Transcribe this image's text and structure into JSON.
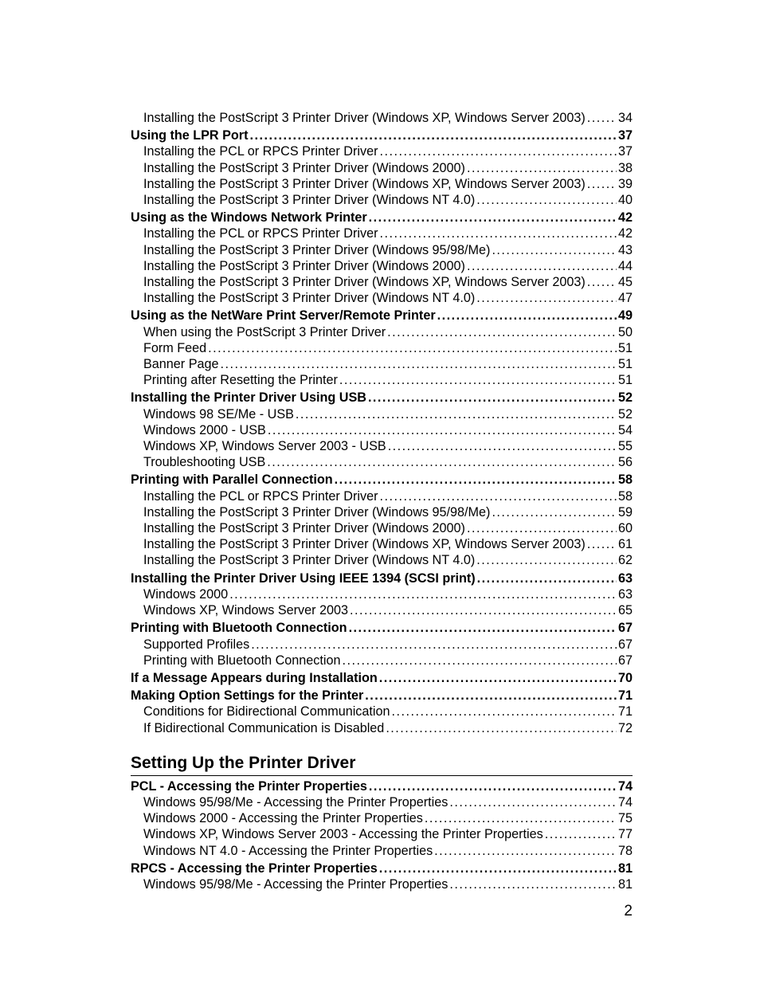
{
  "page_number": "2",
  "colors": {
    "text": "#000000",
    "background": "#ffffff",
    "rule": "#000000"
  },
  "typography": {
    "body_fontsize_pt": 12,
    "heading_fontsize_pt": 16,
    "font_family": "Arial"
  },
  "sections": [
    {
      "groups": [
        {
          "heading": null,
          "entries": [
            {
              "level": 2,
              "label": "Installing the PostScript 3 Printer Driver (Windows XP, Windows Server 2003)",
              "page": "34"
            }
          ]
        },
        {
          "heading": {
            "label": "Using the LPR Port",
            "page": "37"
          },
          "entries": [
            {
              "level": 2,
              "label": "Installing the PCL or RPCS Printer Driver",
              "page": "37"
            },
            {
              "level": 2,
              "label": "Installing the PostScript 3 Printer Driver (Windows 2000)",
              "page": "38"
            },
            {
              "level": 2,
              "label": "Installing the PostScript 3 Printer Driver (Windows XP, Windows Server 2003)",
              "page": "39"
            },
            {
              "level": 2,
              "label": "Installing the PostScript 3 Printer Driver (Windows NT 4.0)",
              "page": "40"
            }
          ]
        },
        {
          "heading": {
            "label": "Using as the Windows Network Printer",
            "page": "42"
          },
          "entries": [
            {
              "level": 2,
              "label": "Installing the PCL or RPCS Printer Driver",
              "page": "42"
            },
            {
              "level": 2,
              "label": "Installing the PostScript 3 Printer Driver (Windows 95/98/Me)",
              "page": "43"
            },
            {
              "level": 2,
              "label": "Installing the PostScript 3 Printer Driver (Windows 2000)",
              "page": "44"
            },
            {
              "level": 2,
              "label": "Installing the PostScript 3 Printer Driver (Windows XP, Windows Server 2003)",
              "page": "45"
            },
            {
              "level": 2,
              "label": "Installing the PostScript 3 Printer Driver (Windows NT 4.0)",
              "page": "47"
            }
          ]
        },
        {
          "heading": {
            "label": "Using as the NetWare Print Server/Remote Printer",
            "page": "49"
          },
          "entries": [
            {
              "level": 2,
              "label": "When using the PostScript 3 Printer Driver",
              "page": "50"
            },
            {
              "level": 2,
              "label": "Form Feed",
              "page": "51"
            },
            {
              "level": 2,
              "label": "Banner Page",
              "page": "51"
            },
            {
              "level": 2,
              "label": "Printing after Resetting the Printer",
              "page": "51"
            }
          ]
        },
        {
          "heading": {
            "label": "Installing the Printer Driver Using USB",
            "page": "52"
          },
          "entries": [
            {
              "level": 2,
              "label": "Windows 98 SE/Me - USB",
              "page": "52"
            },
            {
              "level": 2,
              "label": "Windows 2000 - USB",
              "page": "54"
            },
            {
              "level": 2,
              "label": "Windows XP, Windows Server 2003 - USB",
              "page": "55"
            },
            {
              "level": 2,
              "label": "Troubleshooting USB",
              "page": "56"
            }
          ]
        },
        {
          "heading": {
            "label": "Printing with Parallel Connection",
            "page": "58"
          },
          "entries": [
            {
              "level": 2,
              "label": "Installing the PCL or RPCS Printer Driver",
              "page": "58"
            },
            {
              "level": 2,
              "label": "Installing the PostScript 3 Printer Driver (Windows 95/98/Me)",
              "page": "59"
            },
            {
              "level": 2,
              "label": "Installing the PostScript 3 Printer Driver (Windows 2000)",
              "page": "60"
            },
            {
              "level": 2,
              "label": "Installing the PostScript 3 Printer Driver (Windows XP, Windows Server 2003)",
              "page": "61"
            },
            {
              "level": 2,
              "label": "Installing the PostScript 3 Printer Driver (Windows NT 4.0)",
              "page": "62"
            }
          ]
        },
        {
          "heading": {
            "label": "Installing the Printer Driver Using IEEE 1394 (SCSI print)",
            "page": "63"
          },
          "entries": [
            {
              "level": 2,
              "label": "Windows 2000",
              "page": "63"
            },
            {
              "level": 2,
              "label": "Windows XP, Windows Server 2003",
              "page": "65"
            }
          ]
        },
        {
          "heading": {
            "label": "Printing with Bluetooth Connection",
            "page": "67"
          },
          "entries": [
            {
              "level": 2,
              "label": "Supported Profiles",
              "page": "67"
            },
            {
              "level": 2,
              "label": "Printing with Bluetooth Connection",
              "page": "67"
            }
          ]
        },
        {
          "heading": {
            "label": "If a Message Appears during Installation",
            "page": "70"
          },
          "entries": []
        },
        {
          "heading": {
            "label": "Making Option Settings for the Printer",
            "page": "71"
          },
          "entries": [
            {
              "level": 2,
              "label": "Conditions for Bidirectional Communication",
              "page": "71"
            },
            {
              "level": 2,
              "label": "If Bidirectional Communication is Disabled",
              "page": "72"
            }
          ]
        }
      ]
    },
    {
      "title": "Setting Up the Printer Driver",
      "groups": [
        {
          "heading": {
            "label": "PCL - Accessing the Printer Properties",
            "page": "74"
          },
          "entries": [
            {
              "level": 2,
              "label": "Windows 95/98/Me - Accessing the Printer Properties",
              "page": "74"
            },
            {
              "level": 2,
              "label": "Windows 2000 - Accessing the Printer Properties",
              "page": "75"
            },
            {
              "level": 2,
              "label": "Windows XP, Windows Server 2003 - Accessing the Printer Properties",
              "page": "77"
            },
            {
              "level": 2,
              "label": "Windows NT 4.0 - Accessing the Printer Properties",
              "page": "78"
            }
          ]
        },
        {
          "heading": {
            "label": "RPCS - Accessing the Printer Properties",
            "page": "81"
          },
          "entries": [
            {
              "level": 2,
              "label": "Windows 95/98/Me - Accessing the Printer Properties",
              "page": "81"
            }
          ]
        }
      ]
    }
  ]
}
